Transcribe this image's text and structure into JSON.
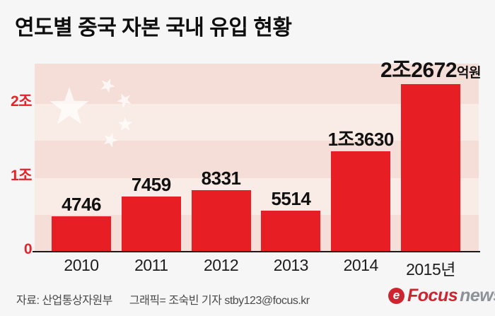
{
  "title": "연도별 중국 자본 국내 유입 현황",
  "chart_data": {
    "type": "bar",
    "title": "연도별 중국 자본 국내 유입 현황",
    "unit": "억원",
    "categories": [
      "2010",
      "2011",
      "2012",
      "2013",
      "2014",
      "2015년"
    ],
    "values": [
      4746,
      7459,
      8331,
      5514,
      13630,
      22672
    ],
    "bar_labels": [
      {
        "main": "4746",
        "suffix": ""
      },
      {
        "main": "7459",
        "suffix": ""
      },
      {
        "main": "8331",
        "suffix": ""
      },
      {
        "main": "5514",
        "suffix": ""
      },
      {
        "main": "1조3630",
        "suffix": ""
      },
      {
        "main": "2조2672",
        "suffix": "억원"
      }
    ],
    "y_axis": {
      "ticks": [
        {
          "value": 0,
          "label": "0"
        },
        {
          "value": 10000,
          "label": "1조"
        },
        {
          "value": 20000,
          "label": "2조"
        }
      ],
      "max": 25450
    },
    "ylim": [
      0,
      25450
    ],
    "grid": false,
    "legend": "none",
    "bar_color": "#e71f25",
    "tick_color": "#e52329",
    "band_dark": "#f4ded7",
    "band_light": "#f9ebe6",
    "background_motif": "china-flag-stars"
  },
  "footer": {
    "source": "자료: 산업통상자원부",
    "credit": "그래픽= 조숙빈 기자 stby123@focus.kr"
  },
  "logo": {
    "icon_glyph": "e",
    "focus": "Focus",
    "news": "news"
  }
}
